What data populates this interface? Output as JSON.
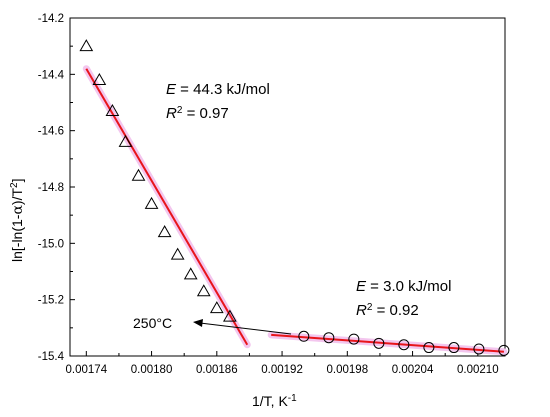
{
  "chart_data": {
    "type": "scatter",
    "xlabel_main": "1/T, K",
    "xlabel_sup": "-1",
    "ylabel_parts": [
      "ln[-ln(1-",
      "α",
      ")/T",
      "2",
      "]"
    ],
    "xlim": [
      0.001725,
      0.002125
    ],
    "ylim": [
      -15.4,
      -14.2
    ],
    "x_ticks": [
      0.00174,
      0.0018,
      0.00186,
      0.00192,
      0.00198,
      0.00204,
      0.0021
    ],
    "x_tick_labels": [
      "0.00174",
      "0.00180",
      "0.00186",
      "0.00192",
      "0.00198",
      "0.00204",
      "0.00210"
    ],
    "y_ticks": [
      -14.2,
      -14.4,
      -14.6,
      -14.8,
      -15.0,
      -15.2,
      -15.4
    ],
    "y_tick_labels": [
      "-14.2",
      "-14.4",
      "-14.6",
      "-14.8",
      "-15.0",
      "-15.2",
      "-15.4"
    ],
    "grid": false,
    "series": [
      {
        "marker": "triangle",
        "x": [
          0.00174,
          0.001752,
          0.001764,
          0.001776,
          0.001788,
          0.0018,
          0.001812,
          0.001824,
          0.001836,
          0.001848,
          0.00186,
          0.001872
        ],
        "y": [
          -14.3,
          -14.42,
          -14.53,
          -14.64,
          -14.76,
          -14.86,
          -14.96,
          -15.04,
          -15.11,
          -15.17,
          -15.23,
          -15.26
        ]
      },
      {
        "marker": "circle",
        "x": [
          0.00194,
          0.001963,
          0.001986,
          0.002009,
          0.002032,
          0.002055,
          0.002078,
          0.002101,
          0.002124
        ],
        "y": [
          -15.33,
          -15.335,
          -15.34,
          -15.355,
          -15.36,
          -15.37,
          -15.37,
          -15.375,
          -15.38
        ]
      }
    ],
    "fit_lines": [
      {
        "color": "#e8151b",
        "x": [
          0.00174,
          0.001888
        ],
        "y": [
          -14.38,
          -15.36
        ]
      },
      {
        "color": "#e8151b",
        "x": [
          0.00191,
          0.002124
        ],
        "y": [
          -15.325,
          -15.385
        ]
      }
    ],
    "annotations": {
      "fit1_E_symbol": "E",
      "fit1_E_value": " = 44.3 kJ/mol",
      "fit1_R_symbol": "R",
      "fit1_R_sup": "2",
      "fit1_R_value": " = 0.97",
      "fit2_E_symbol": "E",
      "fit2_E_value": " = 3.0 kJ/mol",
      "fit2_R_symbol": "R",
      "fit2_R_sup": "2",
      "fit2_R_value": " = 0.92",
      "arrow_label": "250°C"
    }
  }
}
